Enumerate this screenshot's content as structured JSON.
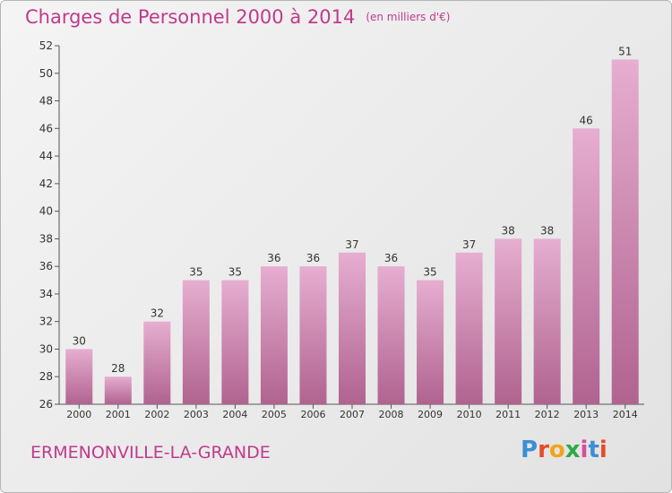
{
  "header": {
    "title": "Charges de Personnel 2000 à 2014",
    "subtitle": "(en milliers d'€)"
  },
  "footer": {
    "town": "ERMENONVILLE-LA-GRANDE",
    "logo": "Proxiti"
  },
  "colors": {
    "accent": "#c03a8c",
    "bar_top": "#e6aed0",
    "bar_bottom": "#b0638f"
  },
  "chart_data": {
    "type": "bar",
    "categories": [
      "2000",
      "2001",
      "2002",
      "2003",
      "2004",
      "2005",
      "2006",
      "2007",
      "2008",
      "2009",
      "2010",
      "2011",
      "2012",
      "2013",
      "2014"
    ],
    "values": [
      30,
      28,
      32,
      35,
      35,
      36,
      36,
      37,
      36,
      35,
      37,
      38,
      38,
      46,
      51
    ],
    "ylim": [
      26,
      52
    ],
    "yticks": [
      26,
      28,
      30,
      32,
      34,
      36,
      38,
      40,
      42,
      44,
      46,
      48,
      50,
      52
    ],
    "grid": false,
    "data_labels": true
  }
}
